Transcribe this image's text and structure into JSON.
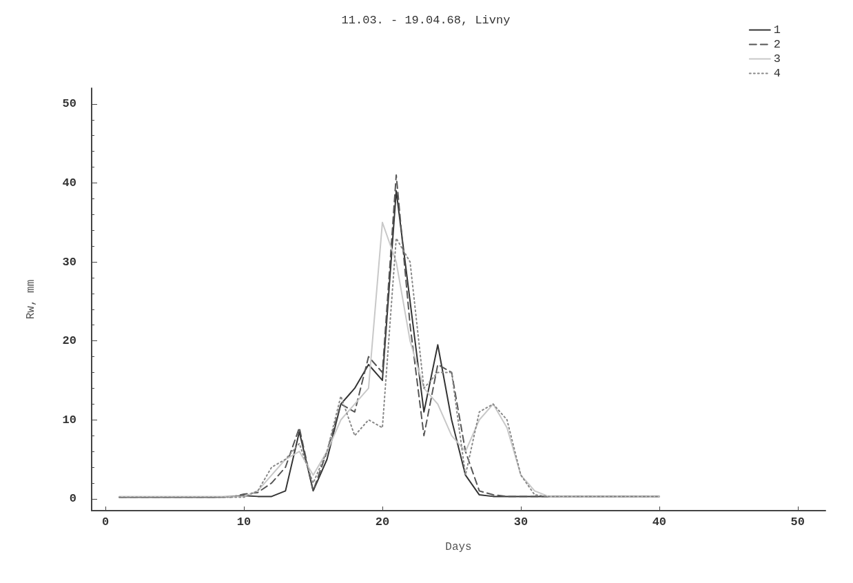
{
  "chart_data": {
    "type": "line",
    "title": "11.03. - 19.04.68, Livny",
    "xlabel": "Days",
    "ylabel": "Rw, mm",
    "xlim": [
      -1,
      52
    ],
    "ylim": [
      -1.5,
      52
    ],
    "xticks": [
      0,
      10,
      20,
      30,
      40,
      50
    ],
    "yticks": [
      0,
      10,
      20,
      30,
      40,
      50
    ],
    "grid": false,
    "legend": "top right",
    "marker": "none",
    "x": [
      1,
      2,
      3,
      4,
      5,
      6,
      7,
      8,
      9,
      10,
      11,
      12,
      13,
      14,
      15,
      16,
      17,
      18,
      19,
      20,
      21,
      22,
      23,
      24,
      25,
      26,
      27,
      28,
      29,
      30,
      31,
      32,
      33,
      34,
      35,
      36,
      37,
      38,
      39,
      40
    ],
    "series": [
      {
        "name": "1",
        "color": "#333333",
        "line_style": "solid",
        "values": [
          0.2,
          0.2,
          0.2,
          0.2,
          0.2,
          0.2,
          0.2,
          0.2,
          0.3,
          0.4,
          0.3,
          0.3,
          1,
          8.5,
          1,
          5,
          12,
          14,
          17,
          15,
          39,
          25,
          11,
          19.5,
          10,
          3,
          0.5,
          0.3,
          0.3,
          0.3,
          0.3,
          0.3,
          0.3,
          0.3,
          0.3,
          0.3,
          0.3,
          0.3,
          0.3,
          0.3
        ]
      },
      {
        "name": "2",
        "color": "#555555",
        "line_style": "dashed",
        "values": [
          0.2,
          0.2,
          0.2,
          0.2,
          0.2,
          0.2,
          0.2,
          0.2,
          0.2,
          0.6,
          0.8,
          2,
          4,
          9,
          1,
          6,
          12,
          11,
          18,
          16,
          41,
          22,
          8,
          17,
          16,
          6,
          1,
          0.5,
          0.3,
          0.3,
          0.3,
          0.3,
          0.3,
          0.3,
          0.3,
          0.3,
          0.3,
          0.3,
          0.3,
          0.3
        ]
      },
      {
        "name": "3",
        "color": "#c8c8c8",
        "line_style": "solid",
        "values": [
          0.3,
          0.3,
          0.3,
          0.3,
          0.3,
          0.3,
          0.3,
          0.3,
          0.3,
          0.3,
          1,
          3,
          5,
          6,
          3,
          6,
          10,
          12,
          14,
          35,
          30,
          20,
          14,
          12,
          8,
          6,
          10,
          12,
          9,
          3,
          1,
          0.3,
          0.3,
          0.3,
          0.3,
          0.3,
          0.3,
          0.3,
          0.3,
          0.3
        ]
      },
      {
        "name": "4",
        "color": "#888888",
        "line_style": "dotted",
        "values": [
          0.2,
          0.2,
          0.2,
          0.2,
          0.2,
          0.2,
          0.2,
          0.2,
          0.2,
          0.2,
          1,
          4,
          5,
          7,
          2,
          6,
          13,
          8,
          10,
          9,
          33,
          30,
          14,
          16,
          16,
          3,
          11,
          12,
          10,
          3,
          0.5,
          0.3,
          0.3,
          0.3,
          0.3,
          0.3,
          0.3,
          0.3,
          0.3,
          0.3
        ]
      }
    ]
  }
}
